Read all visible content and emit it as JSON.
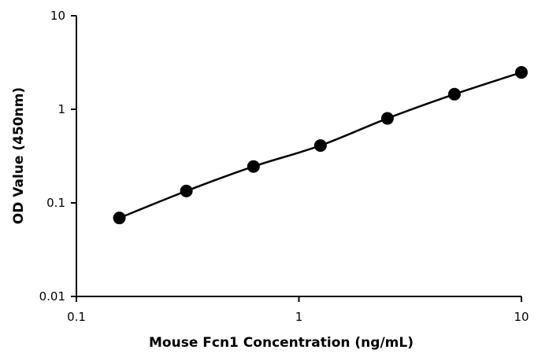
{
  "chart_data": {
    "type": "scatter",
    "title": "",
    "xlabel": "Mouse Fcn1 Concentration (ng/mL)",
    "ylabel": "OD Value (450nm)",
    "x_scale": "log",
    "y_scale": "log",
    "xlim": [
      0.1,
      10
    ],
    "ylim": [
      0.01,
      10
    ],
    "x_ticks": [
      0.1,
      1,
      10
    ],
    "x_tick_labels": [
      "0.1",
      "1",
      "10"
    ],
    "y_ticks": [
      0.01,
      0.1,
      1,
      10
    ],
    "y_tick_labels": [
      "0.01",
      "0.1",
      "1",
      "10"
    ],
    "grid": false,
    "legend": "none",
    "series": [
      {
        "x": [
          0.156,
          0.312,
          0.625,
          1.25,
          2.5,
          5,
          10
        ],
        "y": [
          0.069,
          0.134,
          0.245,
          0.41,
          0.8,
          1.45,
          2.48
        ],
        "marker": "circle",
        "line": "smooth",
        "color": "#000000"
      }
    ]
  }
}
